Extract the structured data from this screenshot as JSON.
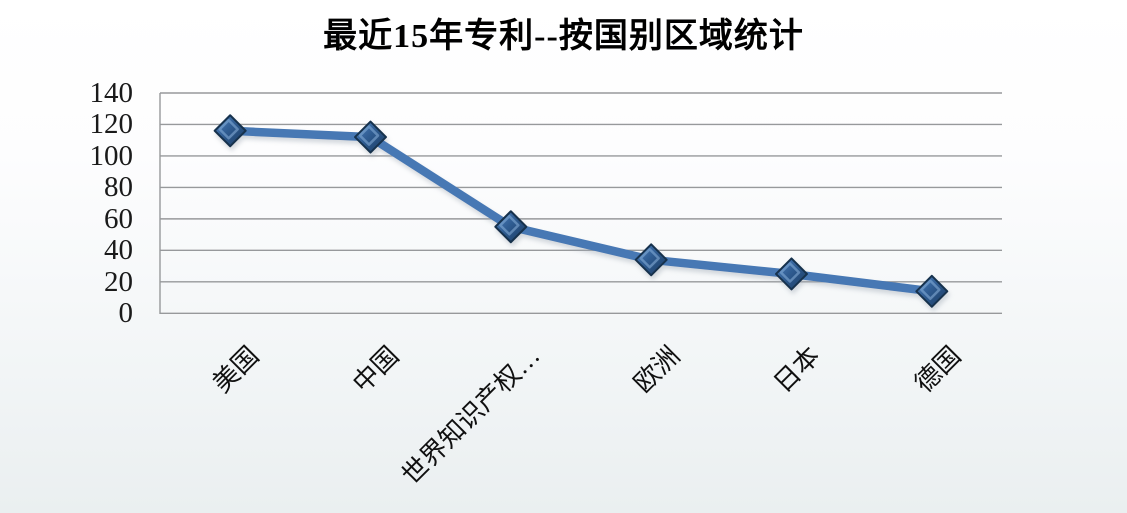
{
  "chart_data": {
    "type": "line",
    "title": "最近15年专利--按国别区域统计",
    "categories": [
      "美国",
      "中国",
      "世界知识产权…",
      "欧洲",
      "日本",
      "德国"
    ],
    "values": [
      116,
      112,
      55,
      34,
      25,
      14
    ],
    "yticks": [
      0,
      20,
      40,
      60,
      80,
      100,
      120,
      140
    ],
    "ylim": [
      0,
      140
    ],
    "xlabel": "",
    "ylabel": "",
    "grid": true,
    "legend": false,
    "marker": "diamond",
    "x_label_rotation_deg": 45,
    "colors": {
      "line": "#4678b4",
      "marker_fill_light": "#5487c4",
      "marker_fill_mid": "#2f5c92",
      "marker_fill_dark": "#1d3c60",
      "marker_edge": "#16314e",
      "marker_highlight": "#89b1db",
      "gridline": "#97999b",
      "tick_text": "#1a1a1a",
      "title_text": "#000000"
    }
  }
}
